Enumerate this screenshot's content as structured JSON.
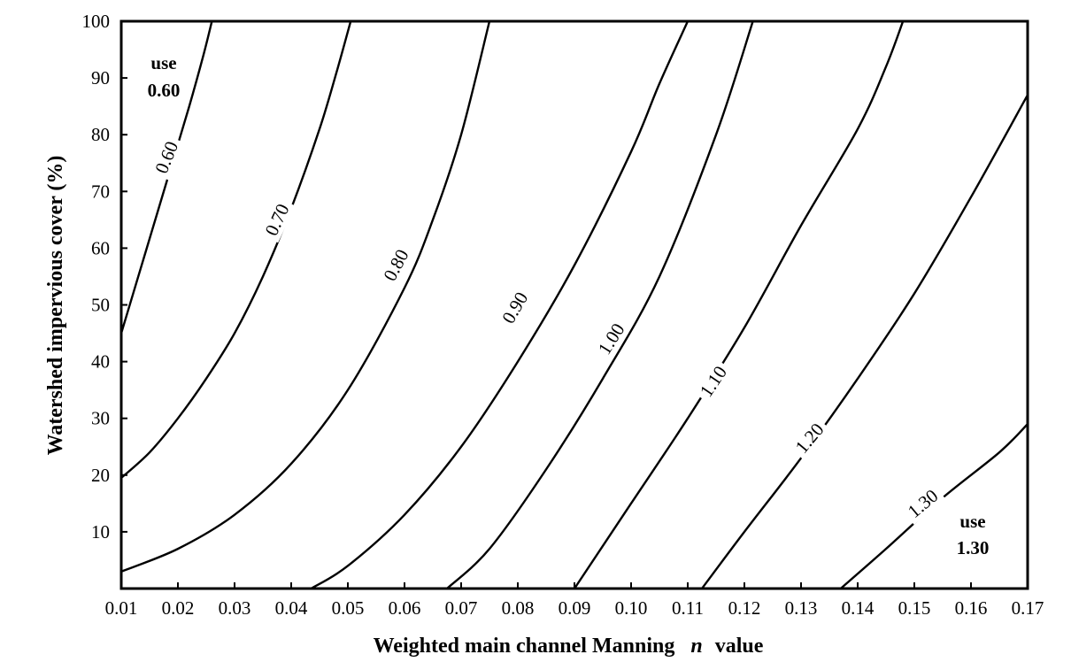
{
  "chart_data": {
    "type": "line",
    "title": "",
    "xlabel_main": "Weighted main channel Manning",
    "xlabel_italic": "n",
    "xlabel_tail": "value",
    "ylabel": "Watershed impervious cover (%)",
    "xlim": [
      0.01,
      0.17
    ],
    "ylim": [
      0,
      100
    ],
    "x_ticks": [
      0.01,
      0.02,
      0.03,
      0.04,
      0.05,
      0.06,
      0.07,
      0.08,
      0.09,
      0.1,
      0.11,
      0.12,
      0.13,
      0.14,
      0.15,
      0.16,
      0.17
    ],
    "x_tick_labels": [
      "0.01",
      "0.02",
      "0.03",
      "0.04",
      "0.05",
      "0.06",
      "0.07",
      "0.08",
      "0.09",
      "0.10",
      "0.11",
      "0.12",
      "0.13",
      "0.14",
      "0.15",
      "0.16",
      "0.17"
    ],
    "y_ticks": [
      10,
      20,
      30,
      40,
      50,
      60,
      70,
      80,
      90,
      100
    ],
    "y_tick_labels": [
      "10",
      "20",
      "30",
      "40",
      "50",
      "60",
      "70",
      "80",
      "90",
      "100"
    ],
    "grid": false,
    "series": [
      {
        "name": "0.60",
        "label_at": [
          0.018,
          76
        ],
        "label_angle": -68,
        "x": [
          0.01,
          0.013,
          0.016,
          0.019,
          0.022,
          0.0245,
          0.026
        ],
        "y": [
          45,
          55,
          65,
          75,
          85,
          94,
          100
        ]
      },
      {
        "name": "0.70",
        "label_at": [
          0.0375,
          65
        ],
        "label_angle": -65,
        "x": [
          0.01,
          0.015,
          0.02,
          0.025,
          0.03,
          0.035,
          0.04,
          0.045,
          0.048,
          0.0505
        ],
        "y": [
          19.5,
          24,
          30,
          37,
          45,
          55,
          67,
          81,
          91,
          100
        ]
      },
      {
        "name": "0.80",
        "label_at": [
          0.0585,
          57
        ],
        "label_angle": -62,
        "x": [
          0.01,
          0.02,
          0.03,
          0.04,
          0.05,
          0.06,
          0.065,
          0.07,
          0.075
        ],
        "y": [
          3,
          7,
          13,
          22,
          35,
          53,
          65,
          80,
          100
        ]
      },
      {
        "name": "0.90",
        "label_at": [
          0.0795,
          49.5
        ],
        "label_angle": -60,
        "x": [
          0.0435,
          0.05,
          0.06,
          0.07,
          0.08,
          0.09,
          0.1,
          0.105,
          0.11
        ],
        "y": [
          0,
          4,
          13,
          25,
          40,
          57,
          77,
          89,
          100
        ]
      },
      {
        "name": "1.00",
        "label_at": [
          0.0965,
          44
        ],
        "label_angle": -58,
        "x": [
          0.0675,
          0.075,
          0.085,
          0.095,
          0.105,
          0.115,
          0.1215
        ],
        "y": [
          0,
          7,
          21,
          37,
          55,
          80,
          100
        ]
      },
      {
        "name": "1.10",
        "label_at": [
          0.1145,
          36.5
        ],
        "label_angle": -56,
        "x": [
          0.09,
          0.1,
          0.11,
          0.12,
          0.13,
          0.14,
          0.145,
          0.148
        ],
        "y": [
          0,
          15,
          30,
          46,
          64,
          81,
          92,
          100
        ]
      },
      {
        "name": "1.20",
        "label_at": [
          0.1315,
          26.5
        ],
        "label_angle": -50,
        "x": [
          0.1125,
          0.12,
          0.13,
          0.14,
          0.15,
          0.16,
          0.17
        ],
        "y": [
          0,
          10,
          23,
          37,
          52,
          69,
          87
        ]
      },
      {
        "name": "1.30",
        "label_at": [
          0.1515,
          15
        ],
        "label_angle": -40,
        "x": [
          0.137,
          0.145,
          0.155,
          0.165,
          0.17
        ],
        "y": [
          0,
          7,
          16,
          24,
          29
        ]
      }
    ]
  },
  "notes": {
    "top_left": {
      "line1": "use",
      "line2": "0.60"
    },
    "bottom_right": {
      "line1": "use",
      "line2": "1.30"
    }
  }
}
